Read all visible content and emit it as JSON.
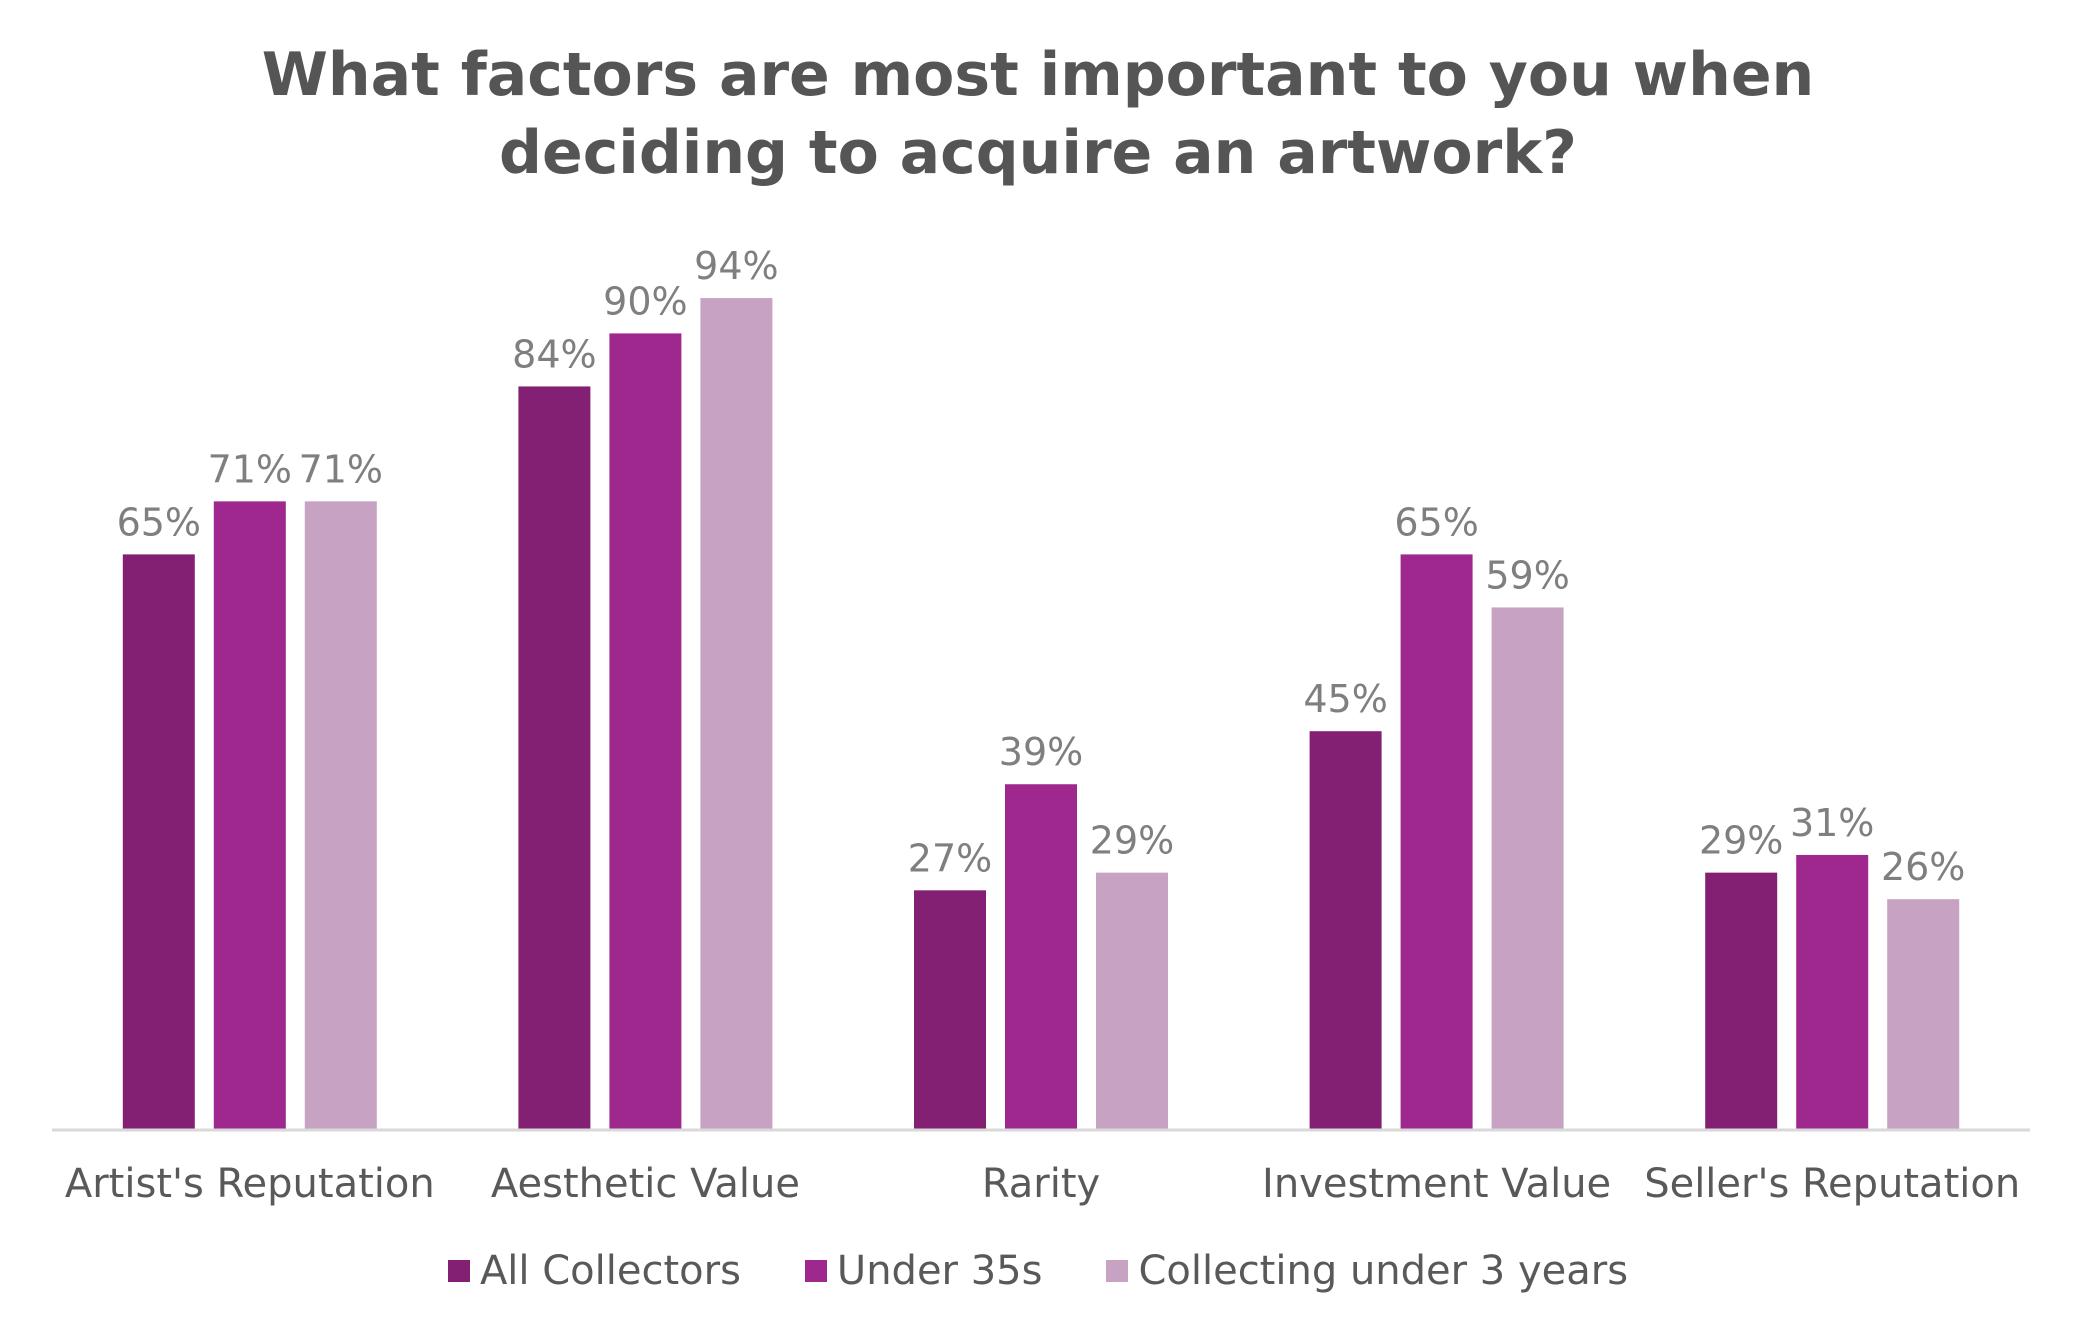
{
  "chart_data": {
    "type": "bar",
    "title_lines": [
      "What factors are most important to you when",
      "deciding to acquire an artwork?"
    ],
    "categories": [
      "Artist's Reputation",
      "Aesthetic Value",
      "Rarity",
      "Investment Value",
      "Seller's Reputation"
    ],
    "series": [
      {
        "name": "All Collectors",
        "color": "#832073",
        "values": [
          65,
          84,
          27,
          45,
          29
        ],
        "labels": [
          "65%",
          "84%",
          "27%",
          "45%",
          "29%"
        ]
      },
      {
        "name": "Under 35s",
        "color": "#9E288E",
        "values": [
          71,
          90,
          39,
          65,
          31
        ],
        "labels": [
          "71%",
          "90%",
          "39%",
          "65%",
          "31%"
        ]
      },
      {
        "name": "Collecting under 3 years",
        "color": "#C8A2C3",
        "values": [
          71,
          94,
          29,
          59,
          26
        ],
        "labels": [
          "71%",
          "94%",
          "29%",
          "59%",
          "26%"
        ]
      }
    ],
    "xlabel": "",
    "ylabel": "",
    "ylim": [
      0,
      100
    ],
    "grid": false,
    "legend_position": "bottom",
    "axis_color": "#D9D9D9",
    "label_color": "#7F7F7F",
    "category_label_color": "#595959"
  }
}
